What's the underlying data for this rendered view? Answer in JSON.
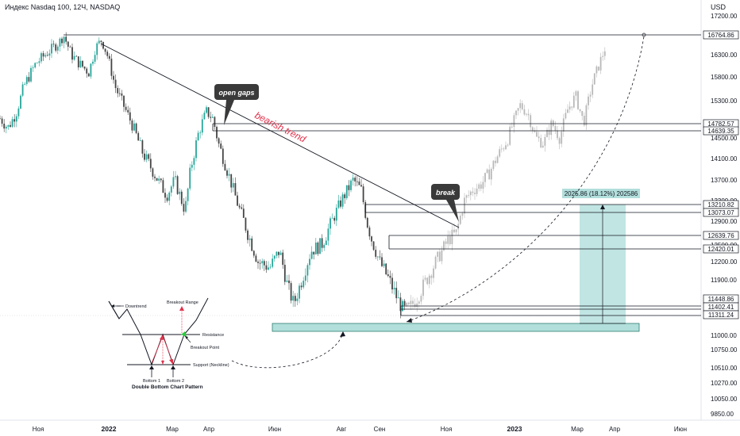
{
  "header": {
    "title": "Индекс Nasdaq 100, 12Ч, NASDAQ",
    "currency": "USD"
  },
  "colors": {
    "up": "#26a69a",
    "down": "#444444",
    "projection": "#b8b8b8",
    "zone": "#b2dfdb",
    "zone_border": "#2e7d6e",
    "bubble": "#3a3a3a",
    "trend_label": "#e0314b"
  },
  "chart_data": {
    "type": "candlestick",
    "y_ticks": [
      "17200.00",
      "16300.00",
      "15800.00",
      "15300.00",
      "14500.00",
      "14100.00",
      "13700.00",
      "13300.00",
      "12900.00",
      "12500.00",
      "12200.00",
      "11900.00",
      "11000.00",
      "10750.00",
      "10510.00",
      "10270.00",
      "10050.00",
      "9850.00"
    ],
    "x_ticks": [
      {
        "label": "Ноя",
        "bold": false
      },
      {
        "label": "2022",
        "bold": true
      },
      {
        "label": "Мар",
        "bold": false
      },
      {
        "label": "Апр",
        "bold": false
      },
      {
        "label": "Июн",
        "bold": false
      },
      {
        "label": "Авг",
        "bold": false
      },
      {
        "label": "Сен",
        "bold": false
      },
      {
        "label": "Ноя",
        "bold": false
      },
      {
        "label": "2023",
        "bold": true
      },
      {
        "label": "Мар",
        "bold": false
      },
      {
        "label": "Апр",
        "bold": false
      },
      {
        "label": "Июн",
        "bold": false
      }
    ],
    "levels": [
      "16764.86",
      "14782.57",
      "14639.35",
      "13210.82",
      "13073.07",
      "12639.76",
      "12420.01",
      "11448.86",
      "11402.41",
      "11311.24"
    ],
    "annotations": {
      "open_gaps": "open gaps",
      "break": "break",
      "trend": "bearish trend",
      "range": "2025.86 (18.12%) 202586"
    },
    "pattern_inset": {
      "title": "Double Bottom Chart Pattern",
      "downtrend": "Downtrend",
      "breakout_range": "Breakout Range",
      "resistance": "Resistance",
      "breakout_point": "Breakout Point",
      "support": "Support (Neckline)",
      "bottom1": "Bottom 1",
      "bottom2": "Bottom 2"
    },
    "series_path": [
      [
        0,
        14900
      ],
      [
        10,
        14700
      ],
      [
        20,
        15000
      ],
      [
        30,
        15600
      ],
      [
        45,
        16100
      ],
      [
        60,
        16350
      ],
      [
        75,
        16600
      ],
      [
        80,
        16764
      ],
      [
        90,
        16300
      ],
      [
        100,
        16100
      ],
      [
        112,
        15900
      ],
      [
        120,
        16450
      ],
      [
        128,
        16650
      ],
      [
        135,
        16300
      ],
      [
        145,
        15600
      ],
      [
        158,
        15100
      ],
      [
        168,
        14700
      ],
      [
        180,
        14200
      ],
      [
        195,
        13800
      ],
      [
        210,
        13400
      ],
      [
        220,
        13700
      ],
      [
        233,
        13100
      ],
      [
        240,
        13900
      ],
      [
        250,
        14600
      ],
      [
        260,
        15050
      ],
      [
        268,
        14900
      ],
      [
        275,
        14400
      ],
      [
        290,
        13700
      ],
      [
        300,
        13200
      ],
      [
        312,
        12700
      ],
      [
        325,
        12200
      ],
      [
        340,
        12100
      ],
      [
        352,
        12400
      ],
      [
        362,
        11800
      ],
      [
        370,
        11500
      ],
      [
        380,
        11900
      ],
      [
        392,
        12400
      ],
      [
        405,
        12500
      ],
      [
        418,
        12900
      ],
      [
        430,
        13300
      ],
      [
        445,
        13700
      ],
      [
        455,
        13500
      ],
      [
        462,
        12900
      ],
      [
        468,
        12600
      ],
      [
        478,
        12200
      ],
      [
        490,
        11900
      ],
      [
        500,
        11600
      ],
      [
        508,
        11400
      ],
      [
        515,
        11420
      ],
      [
        525,
        11600
      ],
      [
        535,
        11850
      ],
      [
        545,
        12100
      ],
      [
        555,
        12350
      ],
      [
        565,
        12600
      ],
      [
        575,
        12700
      ],
      [
        585,
        13300
      ],
      [
        595,
        13500
      ],
      [
        605,
        13600
      ],
      [
        615,
        13800
      ],
      [
        625,
        14100
      ],
      [
        640,
        14500
      ],
      [
        655,
        15200
      ],
      [
        665,
        15000
      ],
      [
        675,
        14500
      ],
      [
        685,
        14400
      ],
      [
        695,
        14800
      ],
      [
        705,
        14500
      ],
      [
        715,
        15100
      ],
      [
        725,
        15400
      ],
      [
        735,
        14800
      ],
      [
        745,
        15600
      ],
      [
        755,
        16100
      ],
      [
        762,
        16450
      ]
    ]
  }
}
